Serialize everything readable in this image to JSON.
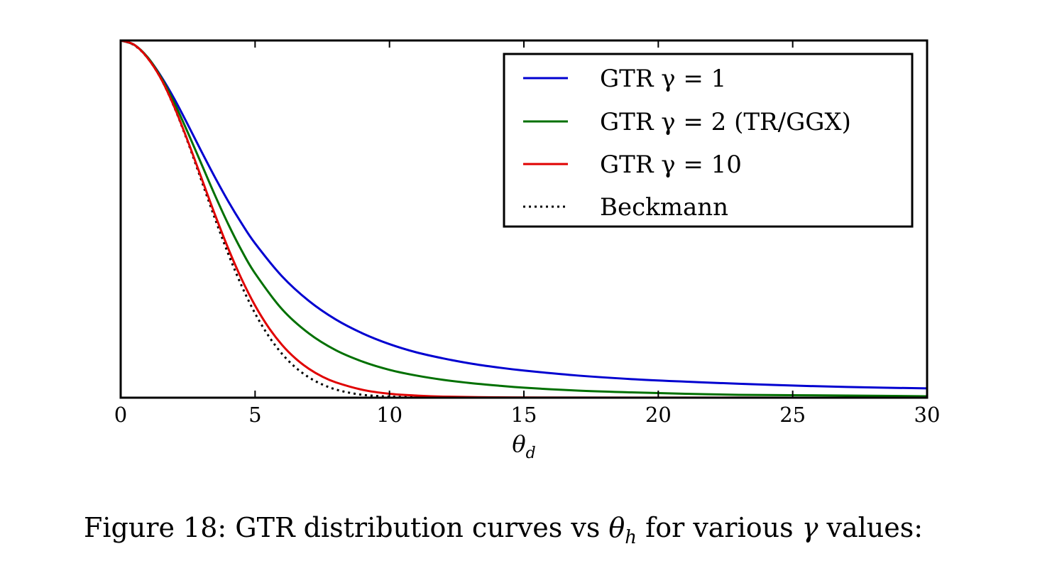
{
  "chart_data": {
    "type": "line",
    "xlabel": "θ",
    "xlabel_sub": "d",
    "ylabel": "",
    "xlim": [
      0,
      30
    ],
    "ylim": [
      0,
      1.0
    ],
    "y_ticks_labeled": false,
    "grid": false,
    "x_ticks": [
      "0",
      "5",
      "10",
      "15",
      "20",
      "25",
      "30"
    ],
    "x_tick_values": [
      0,
      5,
      10,
      15,
      20,
      25,
      30
    ],
    "legend_position": "top-right",
    "series": [
      {
        "name": "GTR γ = 1",
        "color": "#0000d0",
        "style": "solid",
        "x": [
          0,
          0.5,
          1,
          1.5,
          2,
          2.5,
          3,
          3.5,
          4,
          4.5,
          5,
          6,
          7,
          8,
          9,
          10,
          11,
          12,
          13,
          14,
          15,
          17,
          19,
          21,
          23,
          25,
          27,
          30
        ],
        "y": [
          1.0,
          0.988,
          0.953,
          0.9,
          0.836,
          0.764,
          0.69,
          0.618,
          0.55,
          0.488,
          0.432,
          0.34,
          0.271,
          0.219,
          0.18,
          0.15,
          0.127,
          0.11,
          0.096,
          0.085,
          0.076,
          0.062,
          0.052,
          0.045,
          0.039,
          0.034,
          0.03,
          0.026
        ]
      },
      {
        "name": "GTR γ = 2 (TR/GGX)",
        "color": "#007000",
        "style": "solid",
        "x": [
          0,
          0.5,
          1,
          1.5,
          2,
          2.5,
          3,
          3.5,
          4,
          4.5,
          5,
          6,
          7,
          8,
          9,
          10,
          11,
          12,
          13,
          14,
          15,
          17,
          19,
          21,
          23,
          25,
          27,
          30
        ],
        "y": [
          1.0,
          0.988,
          0.953,
          0.897,
          0.825,
          0.742,
          0.655,
          0.568,
          0.486,
          0.412,
          0.348,
          0.248,
          0.18,
          0.133,
          0.101,
          0.078,
          0.062,
          0.05,
          0.041,
          0.034,
          0.028,
          0.02,
          0.015,
          0.011,
          0.008,
          0.007,
          0.006,
          0.004
        ]
      },
      {
        "name": "GTR γ = 10",
        "color": "#e00000",
        "style": "solid",
        "x": [
          0,
          0.5,
          1,
          1.5,
          2,
          2.5,
          3,
          3.5,
          4,
          4.5,
          5,
          5.5,
          6,
          6.5,
          7,
          7.5,
          8,
          9,
          10,
          11,
          12,
          14,
          16,
          20,
          25,
          30
        ],
        "y": [
          1.0,
          0.988,
          0.951,
          0.893,
          0.813,
          0.718,
          0.616,
          0.514,
          0.418,
          0.332,
          0.258,
          0.197,
          0.148,
          0.11,
          0.081,
          0.059,
          0.043,
          0.022,
          0.011,
          0.006,
          0.003,
          0.001,
          0.0005,
          0.0002,
          0.0001,
          0.0
        ]
      },
      {
        "name": "Beckmann",
        "color": "#000000",
        "style": "dotted",
        "x": [
          0,
          0.5,
          1,
          1.5,
          2,
          2.5,
          3,
          3.5,
          4,
          4.5,
          5,
          5.5,
          6,
          6.5,
          7,
          7.5,
          8,
          8.5,
          9,
          9.5,
          10,
          11,
          12
        ],
        "y": [
          1.0,
          0.987,
          0.951,
          0.893,
          0.812,
          0.715,
          0.609,
          0.503,
          0.403,
          0.313,
          0.236,
          0.173,
          0.123,
          0.085,
          0.057,
          0.037,
          0.023,
          0.014,
          0.008,
          0.005,
          0.003,
          0.001,
          0.0
        ]
      }
    ]
  },
  "caption": {
    "prefix": "Figure 18: GTR distribution curves vs ",
    "theta": "θ",
    "theta_sub": "h",
    "middle": " for various ",
    "gamma": "γ",
    "suffix": " values:"
  }
}
